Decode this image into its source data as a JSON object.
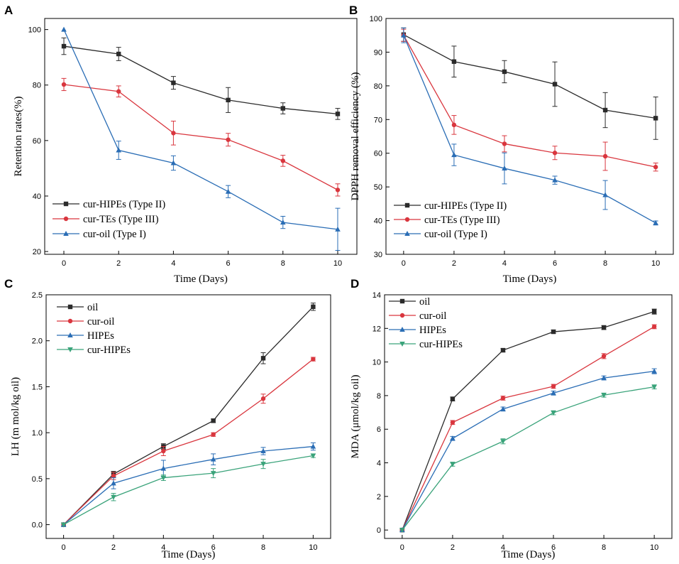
{
  "chart_data": [
    {
      "panel": "A",
      "type": "line",
      "xlabel": "Time (Days)",
      "ylabel": "Retention rates(%)",
      "xlim": [
        -0.7,
        10.7
      ],
      "ylim": [
        19,
        104
      ],
      "xticks": [
        0,
        2,
        4,
        6,
        8,
        10
      ],
      "yticks": [
        20,
        40,
        60,
        80,
        100
      ],
      "legend_position": "bottom-left",
      "series": [
        {
          "name": "cur-HIPEs (Type II)",
          "color": "#2b2b2b",
          "marker": "square",
          "x": [
            0,
            2,
            4,
            6,
            8,
            10
          ],
          "y": [
            94,
            91.2,
            80.8,
            74.6,
            71.6,
            69.6
          ],
          "err": [
            3,
            2.4,
            2.3,
            4.5,
            2,
            2
          ]
        },
        {
          "name": "cur-TEs (Type III)",
          "color": "#d9363e",
          "marker": "circle",
          "x": [
            0,
            2,
            4,
            6,
            8,
            10
          ],
          "y": [
            80.2,
            77.7,
            62.7,
            60.3,
            52.7,
            42.2
          ],
          "err": [
            2.2,
            2,
            4.3,
            2.3,
            2,
            2.2
          ]
        },
        {
          "name": "cur-oil (Type I)",
          "color": "#2a6db5",
          "marker": "triangle",
          "x": [
            0,
            2,
            4,
            6,
            8,
            10
          ],
          "y": [
            100,
            56.5,
            51.9,
            41.6,
            30.5,
            28
          ],
          "err": [
            0,
            3.3,
            2.6,
            2.2,
            2.2,
            7.6
          ]
        }
      ]
    },
    {
      "panel": "B",
      "type": "line",
      "xlabel": "Time (Days)",
      "ylabel": "DPPH removal efficiency (%)",
      "xlim": [
        -0.7,
        10.7
      ],
      "ylim": [
        30,
        100
      ],
      "xticks": [
        0,
        2,
        4,
        6,
        8,
        10
      ],
      "yticks": [
        30,
        40,
        50,
        60,
        70,
        80,
        90,
        100
      ],
      "legend_position": "bottom-left",
      "series": [
        {
          "name": "cur-HIPEs (Type II)",
          "color": "#2b2b2b",
          "marker": "square",
          "x": [
            0,
            2,
            4,
            6,
            8,
            10
          ],
          "y": [
            95.2,
            87.2,
            84.2,
            80.5,
            72.8,
            70.4
          ],
          "err": [
            2,
            4.6,
            3.3,
            6.6,
            5.2,
            6.3
          ]
        },
        {
          "name": "cur-TEs (Type III)",
          "color": "#d9363e",
          "marker": "circle",
          "x": [
            0,
            2,
            4,
            6,
            8,
            10
          ],
          "y": [
            95,
            68.4,
            62.8,
            60.1,
            59.1,
            55.9
          ],
          "err": [
            1.8,
            2.8,
            2.4,
            2,
            4.2,
            1.2
          ]
        },
        {
          "name": "cur-oil (Type I)",
          "color": "#2a6db5",
          "marker": "triangle",
          "x": [
            0,
            2,
            4,
            6,
            8,
            10
          ],
          "y": [
            95,
            59.5,
            55.5,
            52,
            47.6,
            39.3
          ],
          "err": [
            2.2,
            3.2,
            4.6,
            1.2,
            4.3,
            0.6
          ]
        }
      ]
    },
    {
      "panel": "C",
      "type": "line",
      "xlabel": "Time (Days)",
      "ylabel": "LH (m mol/kg oil)",
      "xlim": [
        -0.7,
        10.7
      ],
      "ylim": [
        -0.15,
        2.5
      ],
      "xticks": [
        0,
        2,
        4,
        6,
        8,
        10
      ],
      "yticks": [
        0.0,
        0.5,
        1.0,
        1.5,
        2.0,
        2.5
      ],
      "ytick_labels": [
        "0.0",
        "0.5",
        "1.0",
        "1.5",
        "2.0",
        "2.5"
      ],
      "legend_position": "top-left",
      "series": [
        {
          "name": "oil",
          "color": "#2b2b2b",
          "marker": "square",
          "x": [
            0,
            2,
            4,
            6,
            8,
            10
          ],
          "y": [
            0,
            0.55,
            0.85,
            1.13,
            1.81,
            2.37
          ],
          "err": [
            0,
            0.03,
            0.03,
            0.02,
            0.06,
            0.04
          ]
        },
        {
          "name": "cur-oil",
          "color": "#d9363e",
          "marker": "circle",
          "x": [
            0,
            2,
            4,
            6,
            8,
            10
          ],
          "y": [
            0,
            0.53,
            0.8,
            0.98,
            1.37,
            1.8
          ],
          "err": [
            0,
            0.04,
            0.05,
            0.02,
            0.05,
            0.02
          ]
        },
        {
          "name": "HIPEs",
          "color": "#2a6db5",
          "marker": "triangle",
          "x": [
            0,
            2,
            4,
            6,
            8,
            10
          ],
          "y": [
            0,
            0.45,
            0.61,
            0.71,
            0.8,
            0.85
          ],
          "err": [
            0,
            0.06,
            0.09,
            0.06,
            0.04,
            0.04
          ]
        },
        {
          "name": "cur-HIPEs",
          "color": "#3aa37a",
          "marker": "down-triangle",
          "x": [
            0,
            2,
            4,
            6,
            8,
            10
          ],
          "y": [
            0,
            0.3,
            0.51,
            0.56,
            0.66,
            0.75
          ],
          "err": [
            0,
            0.04,
            0.03,
            0.05,
            0.05,
            0.02
          ]
        }
      ]
    },
    {
      "panel": "D",
      "type": "line",
      "xlabel": "Time (Days)",
      "ylabel": "MDA (μmol/kg oil)",
      "xlim": [
        -0.7,
        10.7
      ],
      "ylim": [
        -0.5,
        14
      ],
      "xticks": [
        0,
        2,
        4,
        6,
        8,
        10
      ],
      "yticks": [
        0,
        2,
        4,
        6,
        8,
        10,
        12,
        14
      ],
      "legend_position": "top-left",
      "series": [
        {
          "name": "oil",
          "color": "#2b2b2b",
          "marker": "square",
          "x": [
            0,
            2,
            4,
            6,
            8,
            10
          ],
          "y": [
            0,
            7.8,
            10.7,
            11.8,
            12.05,
            13
          ],
          "err": [
            0,
            0.12,
            0.1,
            0.1,
            0.12,
            0.15
          ]
        },
        {
          "name": "cur-oil",
          "color": "#d9363e",
          "marker": "circle",
          "x": [
            0,
            2,
            4,
            6,
            8,
            10
          ],
          "y": [
            0,
            6.4,
            7.85,
            8.55,
            10.35,
            12.1
          ],
          "err": [
            0,
            0.12,
            0.12,
            0.12,
            0.15,
            0.12
          ]
        },
        {
          "name": "HIPEs",
          "color": "#2a6db5",
          "marker": "triangle",
          "x": [
            0,
            2,
            4,
            6,
            8,
            10
          ],
          "y": [
            0,
            5.45,
            7.2,
            8.15,
            9.05,
            9.45
          ],
          "err": [
            0,
            0.12,
            0.12,
            0.12,
            0.12,
            0.15
          ]
        },
        {
          "name": "cur-HIPEs",
          "color": "#3aa37a",
          "marker": "down-triangle",
          "x": [
            0,
            2,
            4,
            6,
            8,
            10
          ],
          "y": [
            0,
            3.92,
            5.28,
            6.98,
            8.03,
            8.52
          ],
          "err": [
            0,
            0.12,
            0.15,
            0.12,
            0.12,
            0.12
          ]
        }
      ]
    }
  ]
}
